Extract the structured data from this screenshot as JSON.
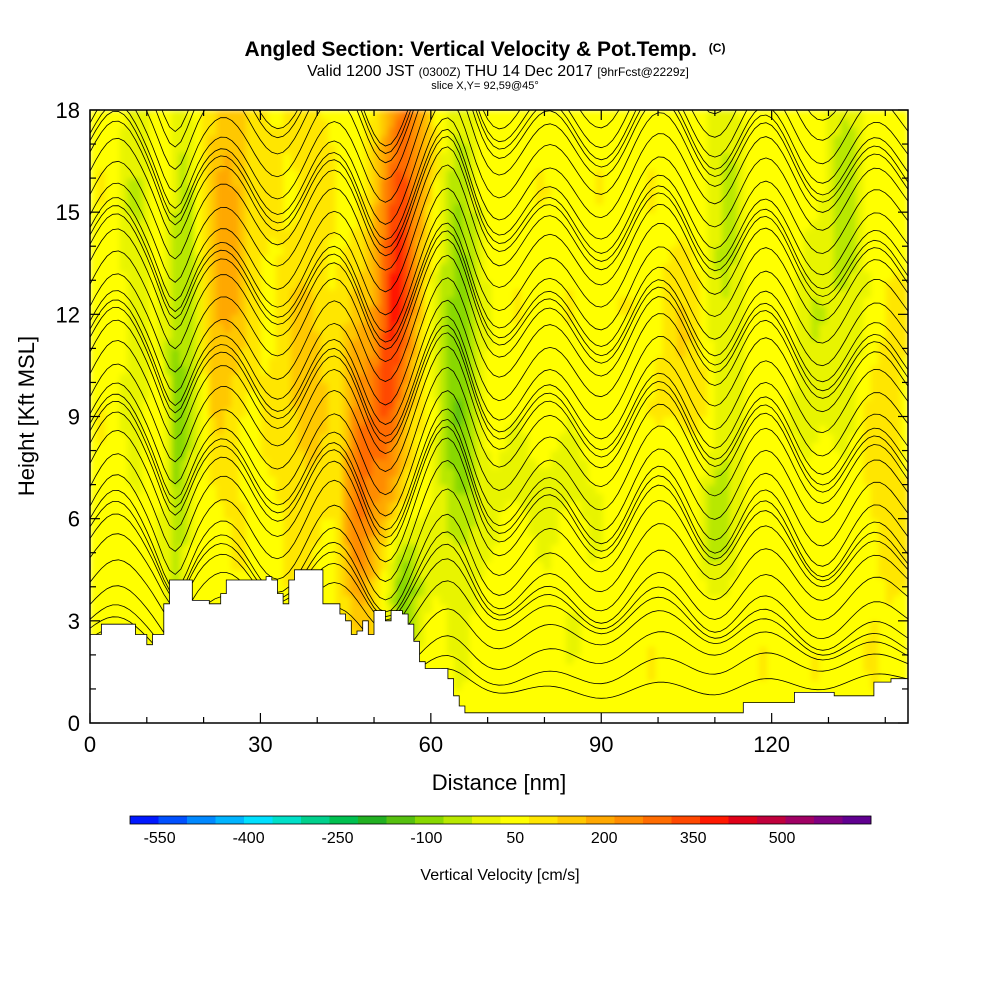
{
  "chart_data": {
    "type": "heatmap",
    "title": "Angled Section: Vertical Velocity & Pot.Temp.",
    "title_unit": "(C)",
    "subtitle": {
      "part1": "Valid 1200 JST",
      "part2": "(0300Z)",
      "part3": "THU 14 Dec 2017",
      "part4": "[9hrFcst@2229z]"
    },
    "slice_label": "slice X,Y= 92,59@45°",
    "xlabel": "Distance [nm]",
    "ylabel": "Height [Kft MSL]",
    "xlim": [
      0,
      144
    ],
    "ylim": [
      0,
      18
    ],
    "x_ticks": [
      "0",
      "30",
      "60",
      "90",
      "120"
    ],
    "y_ticks": [
      "0",
      "3",
      "6",
      "9",
      "12",
      "15",
      "18"
    ],
    "colorbar": {
      "label": "Vertical Velocity [cm/s]",
      "tick_labels": [
        "-550",
        "-400",
        "-250",
        "-100",
        "50",
        "200",
        "350",
        "500"
      ],
      "colors": [
        "#0018ff",
        "#0050ff",
        "#0088ff",
        "#00b4ff",
        "#00e0ff",
        "#00e0c8",
        "#00d08c",
        "#00c050",
        "#22b022",
        "#56c010",
        "#88d800",
        "#b8e800",
        "#e8f400",
        "#ffff00",
        "#ffe600",
        "#ffc800",
        "#ffa800",
        "#ff8c00",
        "#ff6c00",
        "#ff4800",
        "#ff1800",
        "#e00018",
        "#c0003c",
        "#a00064",
        "#800080",
        "#600090"
      ],
      "min": -600,
      "max": 650
    },
    "terrain": [
      [
        0,
        2.6
      ],
      [
        2,
        2.9
      ],
      [
        6,
        2.9
      ],
      [
        8,
        2.6
      ],
      [
        9,
        2.6
      ],
      [
        10,
        2.3
      ],
      [
        11,
        2.6
      ],
      [
        12,
        2.6
      ],
      [
        13,
        3.5
      ],
      [
        14,
        4.2
      ],
      [
        17,
        4.2
      ],
      [
        18,
        3.6
      ],
      [
        20,
        3.6
      ],
      [
        21,
        3.5
      ],
      [
        23,
        3.8
      ],
      [
        24,
        4.2
      ],
      [
        30,
        4.2
      ],
      [
        31,
        4.3
      ],
      [
        32,
        4.2
      ],
      [
        33,
        3.8
      ],
      [
        34,
        3.5
      ],
      [
        35,
        4.2
      ],
      [
        36,
        4.5
      ],
      [
        40,
        4.5
      ],
      [
        41,
        3.5
      ],
      [
        43,
        3.5
      ],
      [
        44,
        3.2
      ],
      [
        45,
        3.0
      ],
      [
        46,
        2.6
      ],
      [
        47,
        2.7
      ],
      [
        48,
        3.0
      ],
      [
        49,
        2.6
      ],
      [
        50,
        3.3
      ],
      [
        52,
        3.0
      ],
      [
        53,
        3.3
      ],
      [
        55,
        3.2
      ],
      [
        56,
        2.9
      ],
      [
        57,
        2.4
      ],
      [
        58,
        1.8
      ],
      [
        59,
        1.6
      ],
      [
        62,
        1.6
      ],
      [
        63,
        1.3
      ],
      [
        64,
        0.8
      ],
      [
        65,
        0.5
      ],
      [
        66,
        0.3
      ],
      [
        78,
        0.3
      ],
      [
        80,
        0.3
      ],
      [
        100,
        0.3
      ],
      [
        110,
        0.3
      ],
      [
        114,
        0.3
      ],
      [
        115,
        0.6
      ],
      [
        120,
        0.6
      ],
      [
        123,
        0.6
      ],
      [
        124,
        0.9
      ],
      [
        127,
        0.9
      ],
      [
        128,
        0.9
      ],
      [
        131,
        0.8
      ],
      [
        136,
        0.8
      ],
      [
        138,
        1.2
      ],
      [
        141,
        1.3
      ],
      [
        144,
        1.3
      ]
    ]
  }
}
